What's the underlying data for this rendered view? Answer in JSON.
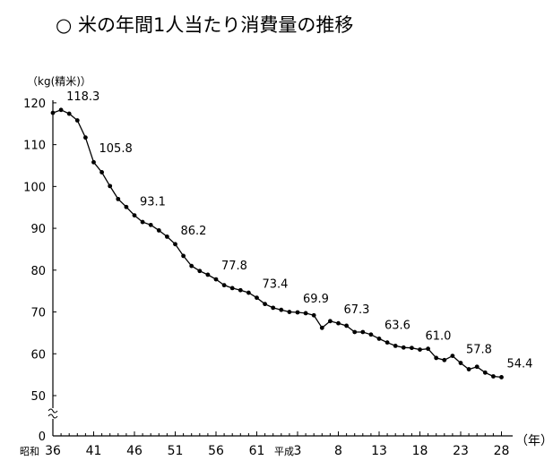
{
  "chart_data": {
    "type": "line",
    "title": "○ 米の年間1人当たり消費量の推移",
    "ylabel": "（kg(精米)）",
    "xlabel": "（年）",
    "ylim": [
      0,
      120
    ],
    "y_ticks": [
      "0",
      "50",
      "60",
      "70",
      "80",
      "90",
      "100",
      "110",
      "120"
    ],
    "x_tick_labels": [
      "昭和",
      "36",
      "41",
      "46",
      "51",
      "56",
      "61",
      "平成",
      "3",
      "8",
      "13",
      "18",
      "23",
      "28"
    ],
    "x": [
      "S36",
      "S37",
      "S38",
      "S39",
      "S40",
      "S41",
      "S42",
      "S43",
      "S44",
      "S45",
      "S46",
      "S47",
      "S48",
      "S49",
      "S50",
      "S51",
      "S52",
      "S53",
      "S54",
      "S55",
      "S56",
      "S57",
      "S58",
      "S59",
      "S60",
      "S61",
      "S62",
      "S63",
      "H1",
      "H2",
      "H3",
      "H4",
      "H5",
      "H6",
      "H7",
      "H8",
      "H9",
      "H10",
      "H11",
      "H12",
      "H13",
      "H14",
      "H15",
      "H16",
      "H17",
      "H18",
      "H19",
      "H20",
      "H21",
      "H22",
      "H23",
      "H24",
      "H25",
      "H26",
      "H27",
      "H28"
    ],
    "series": [
      {
        "values": [
          117.6,
          118.3,
          117.4,
          115.8,
          111.7,
          105.8,
          103.4,
          100.1,
          97.0,
          95.1,
          93.1,
          91.5,
          90.8,
          89.5,
          88.0,
          86.2,
          83.4,
          81.0,
          79.8,
          78.9,
          77.8,
          76.4,
          75.7,
          75.2,
          74.6,
          73.4,
          71.9,
          71.0,
          70.5,
          70.0,
          69.9,
          69.7,
          69.2,
          66.2,
          67.8,
          67.3,
          66.7,
          65.2,
          65.2,
          64.6,
          63.6,
          62.7,
          61.9,
          61.5,
          61.4,
          61.0,
          61.2,
          59.0,
          58.5,
          59.5,
          57.8,
          56.3,
          56.9,
          55.5,
          54.6,
          54.4
        ]
      }
    ],
    "data_labels": [
      {
        "x": "S37",
        "label": "118.3"
      },
      {
        "x": "S41",
        "label": "105.8"
      },
      {
        "x": "S46",
        "label": "93.1"
      },
      {
        "x": "S51",
        "label": "86.2"
      },
      {
        "x": "S56",
        "label": "77.8"
      },
      {
        "x": "S61",
        "label": "73.4"
      },
      {
        "x": "H3",
        "label": "69.9"
      },
      {
        "x": "H8",
        "label": "67.3"
      },
      {
        "x": "H13",
        "label": "63.6"
      },
      {
        "x": "H18",
        "label": "61.0"
      },
      {
        "x": "H23",
        "label": "57.8"
      },
      {
        "x": "H28",
        "label": "54.4"
      }
    ],
    "axis_break": "y between 0 and 50",
    "grid": false,
    "line_color": "#000000",
    "marker": "filled-circle"
  }
}
